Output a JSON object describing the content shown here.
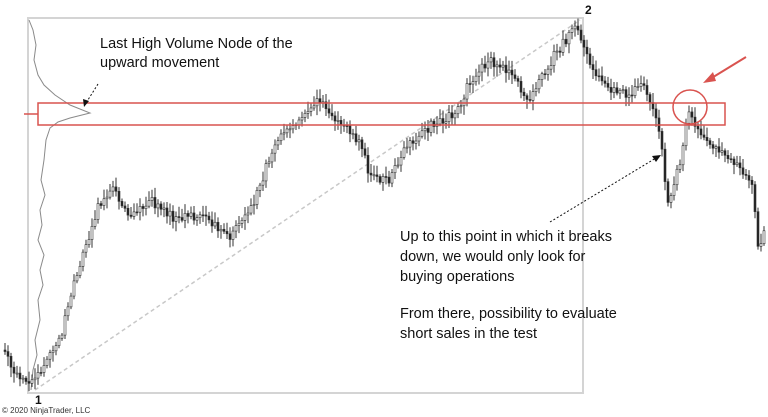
{
  "annotations": {
    "volume_node": [
      "Last High Volume Node of the",
      "upward movement"
    ],
    "breakdown": [
      "Up to this point in which it breaks",
      "down, we would only look for",
      "buying operations"
    ],
    "short_sales": [
      "From there, possibility to evaluate",
      "short sales in the test"
    ]
  },
  "points": {
    "start": "1",
    "peak": "2"
  },
  "copyright": "© 2020 NinjaTrader, LLC"
}
